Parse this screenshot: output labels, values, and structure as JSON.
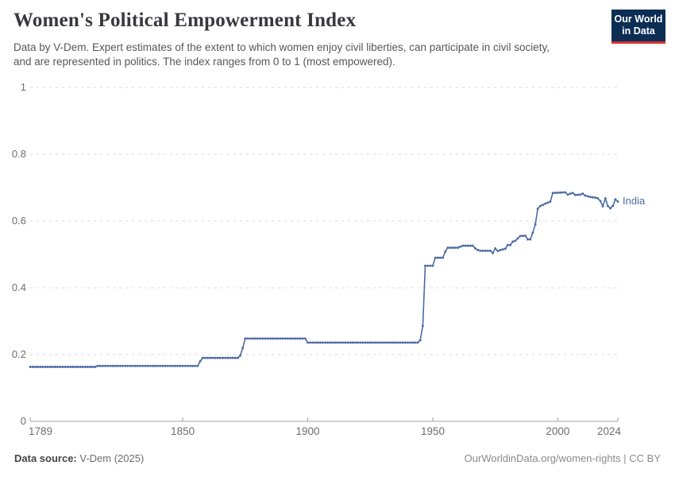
{
  "branding": {
    "logo_line1": "Our World",
    "logo_line2": "in Data",
    "logo_bg": "#0c2d54",
    "logo_accent": "#dc2f33"
  },
  "chart_data": {
    "type": "line",
    "title": "Women's Political Empowerment Index",
    "subtitle": "Data by V-Dem. Expert estimates of the extent to which women enjoy civil liberties, can participate in civil society, and are represented in politics. The index ranges from 0 to 1 (most empowered).",
    "entity_label": "India",
    "line_color": "#4c6ba3",
    "grid": "horizontal-dashed",
    "legend_position": "end-of-line",
    "x_axis": {
      "range": [
        1789,
        2024
      ],
      "ticks": [
        1789,
        1850,
        1900,
        1950,
        2000,
        2024
      ],
      "tick_labels": [
        "1789",
        "1850",
        "1900",
        "1950",
        "2000",
        "2024"
      ]
    },
    "y_axis": {
      "range": [
        0,
        1
      ],
      "ticks": [
        0,
        0.2,
        0.4,
        0.6,
        0.8,
        1
      ],
      "tick_labels": [
        "0",
        "0.2",
        "0.4",
        "0.6",
        "0.8",
        "1"
      ]
    },
    "series": [
      {
        "name": "India",
        "points": [
          [
            1789,
            0.163
          ],
          [
            1815,
            0.163
          ],
          [
            1816,
            0.166
          ],
          [
            1856,
            0.166
          ],
          [
            1857,
            0.18
          ],
          [
            1858,
            0.19
          ],
          [
            1872,
            0.19
          ],
          [
            1873,
            0.197
          ],
          [
            1874,
            0.22
          ],
          [
            1875,
            0.248
          ],
          [
            1899,
            0.248
          ],
          [
            1900,
            0.236
          ],
          [
            1944,
            0.236
          ],
          [
            1945,
            0.243
          ],
          [
            1946,
            0.286
          ],
          [
            1947,
            0.466
          ],
          [
            1950,
            0.466
          ],
          [
            1951,
            0.49
          ],
          [
            1954,
            0.49
          ],
          [
            1955,
            0.508
          ],
          [
            1956,
            0.52
          ],
          [
            1960,
            0.52
          ],
          [
            1962,
            0.526
          ],
          [
            1966,
            0.526
          ],
          [
            1967,
            0.518
          ],
          [
            1968,
            0.513
          ],
          [
            1969,
            0.511
          ],
          [
            1973,
            0.511
          ],
          [
            1974,
            0.504
          ],
          [
            1975,
            0.518
          ],
          [
            1976,
            0.51
          ],
          [
            1977,
            0.513
          ],
          [
            1979,
            0.517
          ],
          [
            1980,
            0.528
          ],
          [
            1981,
            0.528
          ],
          [
            1982,
            0.538
          ],
          [
            1983,
            0.541
          ],
          [
            1984,
            0.548
          ],
          [
            1985,
            0.555
          ],
          [
            1987,
            0.556
          ],
          [
            1988,
            0.545
          ],
          [
            1989,
            0.545
          ],
          [
            1990,
            0.565
          ],
          [
            1991,
            0.59
          ],
          [
            1992,
            0.637
          ],
          [
            1993,
            0.645
          ],
          [
            1994,
            0.648
          ],
          [
            1995,
            0.652
          ],
          [
            1996,
            0.655
          ],
          [
            1997,
            0.658
          ],
          [
            1998,
            0.684
          ],
          [
            2003,
            0.686
          ],
          [
            2004,
            0.679
          ],
          [
            2005,
            0.682
          ],
          [
            2006,
            0.684
          ],
          [
            2007,
            0.678
          ],
          [
            2009,
            0.679
          ],
          [
            2010,
            0.682
          ],
          [
            2011,
            0.676
          ],
          [
            2012,
            0.674
          ],
          [
            2013,
            0.672
          ],
          [
            2015,
            0.67
          ],
          [
            2016,
            0.668
          ],
          [
            2017,
            0.66
          ],
          [
            2018,
            0.644
          ],
          [
            2019,
            0.668
          ],
          [
            2020,
            0.645
          ],
          [
            2021,
            0.638
          ],
          [
            2022,
            0.645
          ],
          [
            2023,
            0.665
          ],
          [
            2024,
            0.658
          ]
        ]
      }
    ]
  },
  "footer": {
    "source_label": "Data source:",
    "source_value": "V-Dem (2025)",
    "credit": "OurWorldinData.org/women-rights | CC BY"
  }
}
